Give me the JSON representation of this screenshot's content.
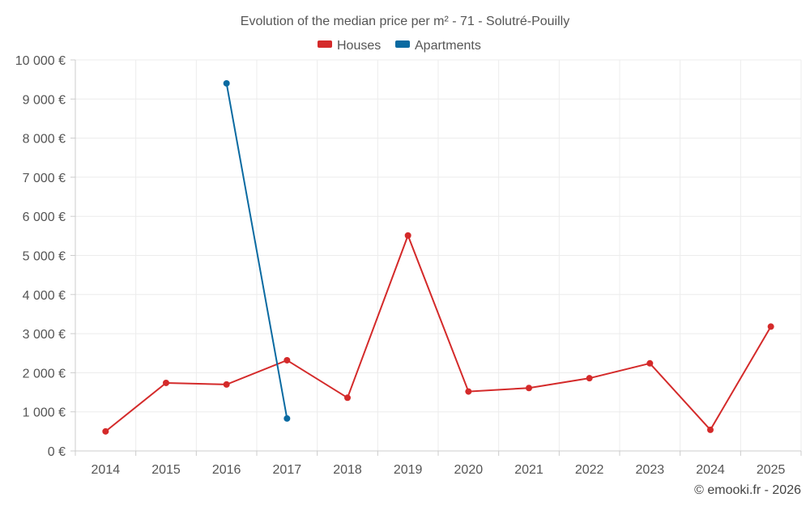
{
  "chart_data": {
    "type": "line",
    "title": "Evolution of the median price per m² - 71 - Solutré-Pouilly",
    "categories": [
      "2014",
      "2015",
      "2016",
      "2017",
      "2018",
      "2019",
      "2020",
      "2021",
      "2022",
      "2023",
      "2024",
      "2025"
    ],
    "y_ticks": [
      "0 €",
      "1 000 €",
      "2 000 €",
      "3 000 €",
      "4 000 €",
      "5 000 €",
      "6 000 €",
      "7 000 €",
      "8 000 €",
      "9 000 €",
      "10 000 €"
    ],
    "ylim": [
      0,
      10000
    ],
    "ystep": 1000,
    "grid": true,
    "legend_position": "top-center",
    "series": [
      {
        "name": "Houses",
        "color": "#d42a2a",
        "values": [
          500,
          1740,
          1700,
          2320,
          1360,
          5510,
          1520,
          1610,
          1860,
          2240,
          540,
          3180
        ]
      },
      {
        "name": "Apartments",
        "color": "#0a6aa1",
        "values": [
          null,
          null,
          9400,
          830,
          null,
          null,
          null,
          null,
          null,
          null,
          null,
          null
        ]
      }
    ]
  },
  "credit": "© emooki.fr - 2026"
}
